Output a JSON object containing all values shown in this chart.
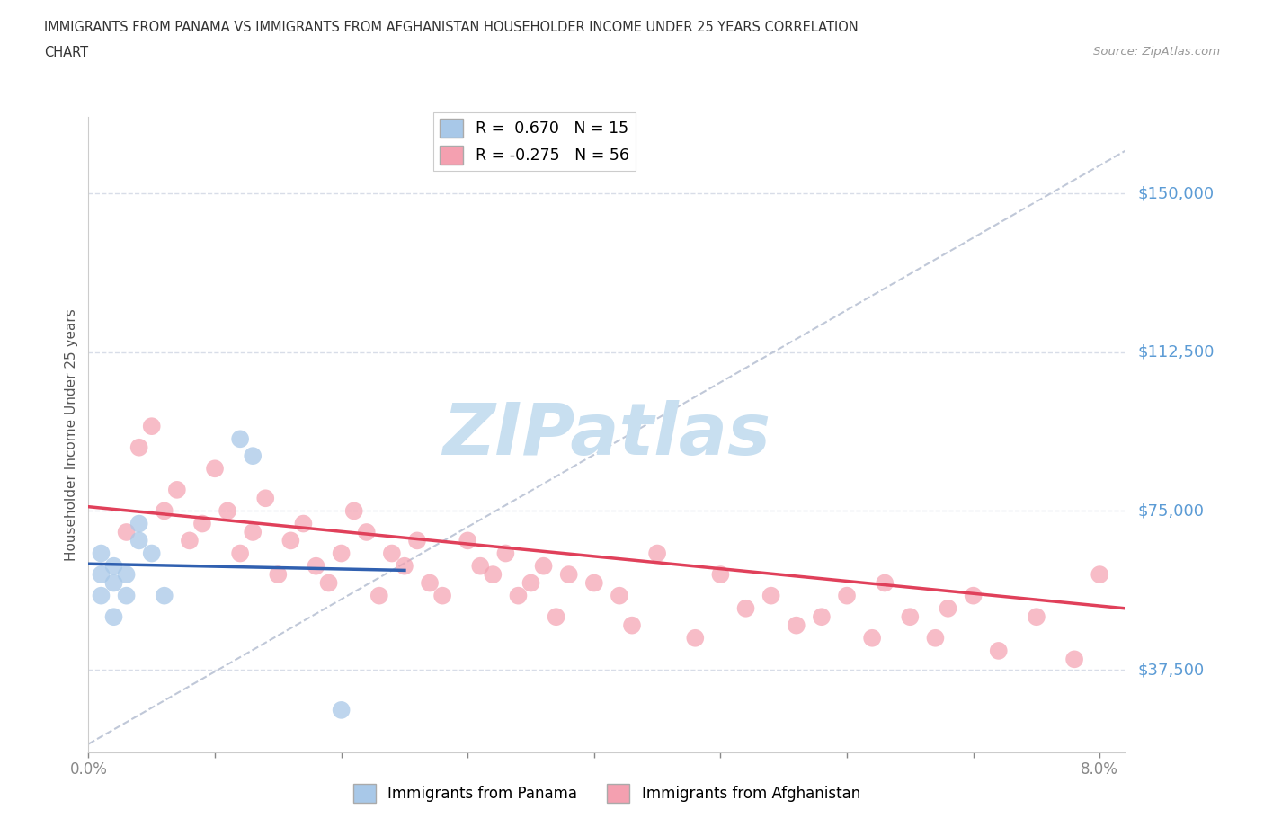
{
  "title_line1": "IMMIGRANTS FROM PANAMA VS IMMIGRANTS FROM AFGHANISTAN HOUSEHOLDER INCOME UNDER 25 YEARS CORRELATION",
  "title_line2": "CHART",
  "source_text": "Source: ZipAtlas.com",
  "ylabel": "Householder Income Under 25 years",
  "xlim": [
    0.0,
    0.082
  ],
  "ylim": [
    18000,
    168000
  ],
  "yticks": [
    37500,
    75000,
    112500,
    150000
  ],
  "ytick_labels": [
    "$37,500",
    "$75,000",
    "$112,500",
    "$150,000"
  ],
  "xticks": [
    0.0,
    0.01,
    0.02,
    0.03,
    0.04,
    0.05,
    0.06,
    0.07,
    0.08
  ],
  "xtick_labels": [
    "0.0%",
    "",
    "",
    "",
    "",
    "",
    "",
    "",
    "8.0%"
  ],
  "panama_color": "#a8c8e8",
  "afghanistan_color": "#f4a0b0",
  "panama_line_color": "#3060b0",
  "afghanistan_line_color": "#e0405a",
  "ref_line_color": "#c0c8d8",
  "r_panama": 0.67,
  "n_panama": 15,
  "r_afghanistan": -0.275,
  "n_afghanistan": 56,
  "panama_scatter_x": [
    0.001,
    0.001,
    0.001,
    0.002,
    0.002,
    0.002,
    0.003,
    0.003,
    0.004,
    0.004,
    0.005,
    0.006,
    0.012,
    0.013,
    0.02
  ],
  "panama_scatter_y": [
    55000,
    60000,
    65000,
    50000,
    58000,
    62000,
    55000,
    60000,
    68000,
    72000,
    65000,
    55000,
    92000,
    88000,
    28000
  ],
  "afghanistan_scatter_x": [
    0.003,
    0.004,
    0.005,
    0.006,
    0.007,
    0.008,
    0.009,
    0.01,
    0.011,
    0.012,
    0.013,
    0.014,
    0.015,
    0.016,
    0.017,
    0.018,
    0.019,
    0.02,
    0.021,
    0.022,
    0.023,
    0.024,
    0.025,
    0.026,
    0.027,
    0.028,
    0.03,
    0.031,
    0.032,
    0.033,
    0.034,
    0.035,
    0.036,
    0.037,
    0.038,
    0.04,
    0.042,
    0.043,
    0.045,
    0.048,
    0.05,
    0.052,
    0.054,
    0.056,
    0.058,
    0.06,
    0.062,
    0.063,
    0.065,
    0.067,
    0.068,
    0.07,
    0.072,
    0.075,
    0.078,
    0.08
  ],
  "afghanistan_scatter_y": [
    70000,
    90000,
    95000,
    75000,
    80000,
    68000,
    72000,
    85000,
    75000,
    65000,
    70000,
    78000,
    60000,
    68000,
    72000,
    62000,
    58000,
    65000,
    75000,
    70000,
    55000,
    65000,
    62000,
    68000,
    58000,
    55000,
    68000,
    62000,
    60000,
    65000,
    55000,
    58000,
    62000,
    50000,
    60000,
    58000,
    55000,
    48000,
    65000,
    45000,
    60000,
    52000,
    55000,
    48000,
    50000,
    55000,
    45000,
    58000,
    50000,
    45000,
    52000,
    55000,
    42000,
    50000,
    40000,
    60000
  ],
  "watermark_color": "#c8dff0",
  "background_color": "#ffffff",
  "grid_color": "#d8dde8",
  "axis_label_color": "#5b9bd5",
  "tick_label_color": "#888888",
  "ylabel_color": "#555555",
  "title_color": "#333333"
}
